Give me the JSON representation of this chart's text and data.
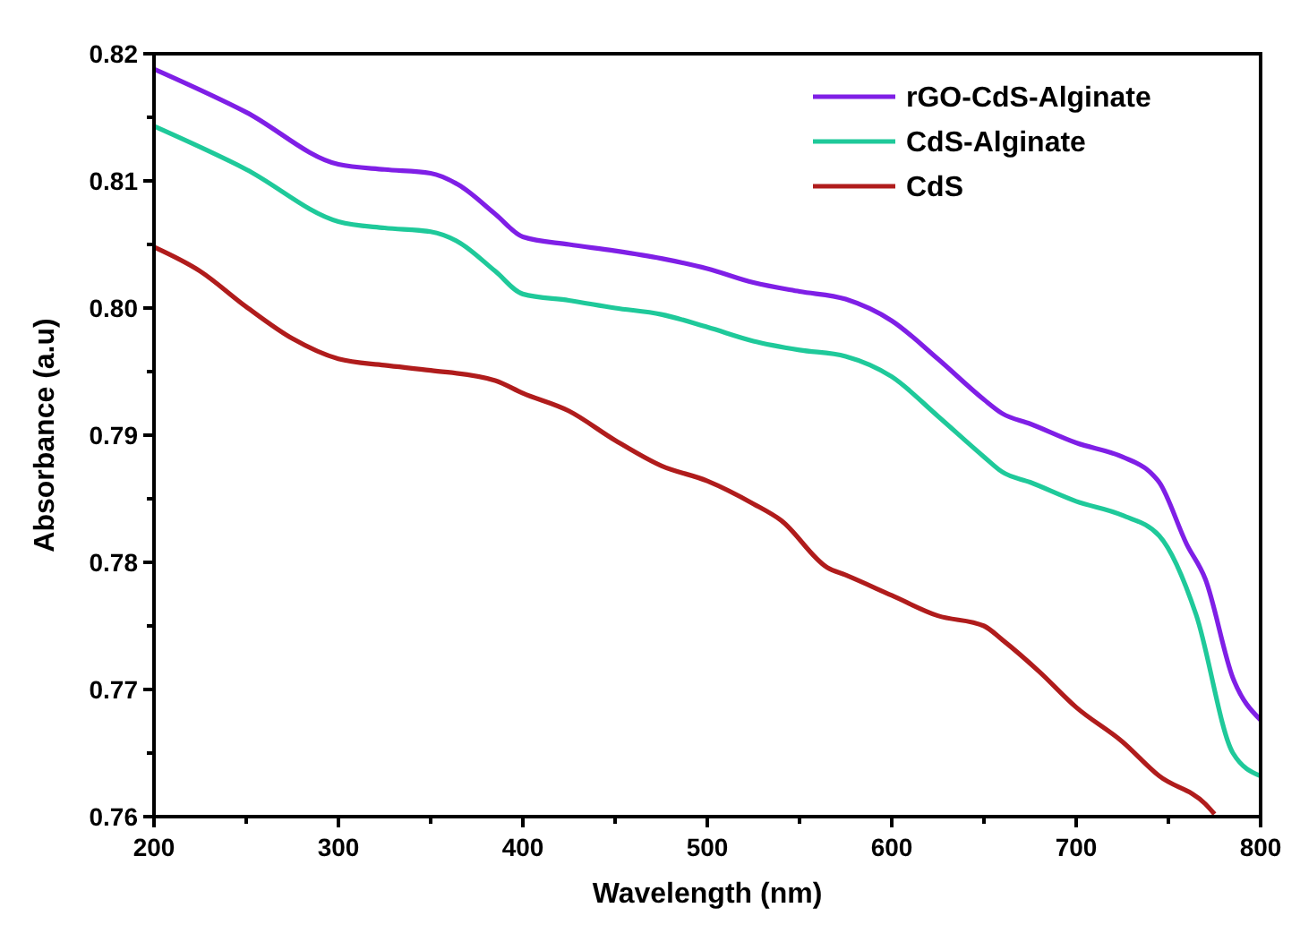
{
  "chart_data": {
    "type": "line",
    "xlabel": "Wavelength (nm)",
    "ylabel": "Absorbance (a.u)",
    "xlim": [
      200,
      800
    ],
    "ylim": [
      0.76,
      0.82
    ],
    "xticks": [
      200,
      {
        "value": 250,
        "label": null
      },
      300,
      {
        "value": 350,
        "label": null
      },
      400,
      {
        "value": 450,
        "label": null
      },
      500,
      {
        "value": 550,
        "label": null
      },
      600,
      {
        "value": 650,
        "label": null
      },
      700,
      {
        "value": 750,
        "label": null
      },
      800
    ],
    "yticks": [
      0.76,
      {
        "value": 0.765,
        "label": null
      },
      0.77,
      {
        "value": 0.775,
        "label": null
      },
      0.78,
      {
        "value": 0.785,
        "label": null
      },
      0.79,
      {
        "value": 0.795,
        "label": null
      },
      {
        "value": 0.8,
        "label": "0.80"
      },
      {
        "value": 0.805,
        "label": null
      },
      0.81,
      {
        "value": 0.815,
        "label": null
      },
      0.82
    ],
    "legend": "top right",
    "grid": false,
    "marker": "none",
    "line_style": "solid",
    "series": [
      {
        "name": "rGO-CdS-Alginate",
        "color": "#7f1fe6",
        "x": [
          200,
          250,
          300,
          325,
          350,
          365,
          385,
          400,
          425,
          450,
          475,
          500,
          525,
          550,
          575,
          600,
          625,
          650,
          660,
          675,
          700,
          725,
          740,
          745,
          760,
          770,
          785,
          800
        ],
        "values": [
          0.8188,
          0.8154,
          0.8113,
          0.8109,
          0.8106,
          0.8097,
          0.8074,
          0.8056,
          0.805,
          0.8045,
          0.8039,
          0.8031,
          0.802,
          0.8013,
          0.8007,
          0.799,
          0.796,
          0.7928,
          0.7917,
          0.7909,
          0.7894,
          0.7883,
          0.7871,
          0.7863,
          0.7814,
          0.7787,
          0.7709,
          0.7676
        ]
      },
      {
        "name": "CdS-Alginate",
        "color": "#1fc99a",
        "x": [
          200,
          250,
          300,
          325,
          350,
          365,
          385,
          400,
          425,
          450,
          475,
          500,
          525,
          550,
          575,
          600,
          625,
          650,
          660,
          675,
          700,
          725,
          745,
          765,
          785,
          800
        ],
        "values": [
          0.8143,
          0.8109,
          0.8068,
          0.8063,
          0.806,
          0.8052,
          0.8029,
          0.8011,
          0.8006,
          0.8,
          0.7995,
          0.7985,
          0.7974,
          0.7967,
          0.7962,
          0.7946,
          0.7915,
          0.7883,
          0.7871,
          0.7863,
          0.7848,
          0.7837,
          0.7821,
          0.7759,
          0.765,
          0.7632
        ]
      },
      {
        "name": "CdS",
        "color": "#b01c1c",
        "x": [
          200,
          225,
          250,
          275,
          300,
          325,
          350,
          385,
          400,
          425,
          450,
          475,
          500,
          525,
          540,
          565,
          575,
          600,
          625,
          650,
          660,
          680,
          700,
          725,
          745,
          770,
          775
        ],
        "values": [
          0.8048,
          0.8029,
          0.8001,
          0.7976,
          0.796,
          0.7955,
          0.7951,
          0.7943,
          0.7933,
          0.7919,
          0.7896,
          0.7876,
          0.7864,
          0.7846,
          0.7833,
          0.7796,
          0.779,
          0.7774,
          0.7758,
          0.775,
          0.7739,
          0.7714,
          0.7686,
          0.7659,
          0.7632,
          0.761,
          0.7602
        ]
      }
    ]
  }
}
